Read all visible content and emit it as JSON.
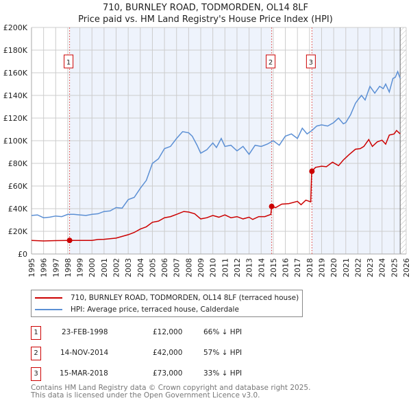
{
  "title": "710, BURNLEY ROAD, TODMORDEN, OL14 8LF",
  "subtitle": "Price paid vs. HM Land Registry's House Price Index (HPI)",
  "legend": {
    "property": "710, BURNLEY ROAD, TODMORDEN, OL14 8LF (terraced house)",
    "hpi": "HPI: Average price, terraced house, Calderdale"
  },
  "sales": [
    {
      "num": "1",
      "date": "23-FEB-1998",
      "price": "£12,000",
      "hpi": "66% ↓ HPI"
    },
    {
      "num": "2",
      "date": "14-NOV-2014",
      "price": "£42,000",
      "hpi": "57% ↓ HPI"
    },
    {
      "num": "3",
      "date": "15-MAR-2018",
      "price": "£73,000",
      "hpi": "33% ↓ HPI"
    }
  ],
  "footer": {
    "line1": "Contains HM Land Registry data © Crown copyright and database right 2025.",
    "line2": "This data is licensed under the Open Government Licence v3.0."
  },
  "chart_data": {
    "type": "line",
    "xlim": [
      1995,
      2026
    ],
    "ylim": [
      0,
      200000
    ],
    "yticks": [
      0,
      20000,
      40000,
      60000,
      80000,
      100000,
      120000,
      140000,
      160000,
      180000,
      200000
    ],
    "ytick_labels": [
      "£0",
      "£20K",
      "£40K",
      "£60K",
      "£80K",
      "£100K",
      "£120K",
      "£140K",
      "£160K",
      "£180K",
      "£200K"
    ],
    "xticks": [
      1995,
      1996,
      1997,
      1998,
      1999,
      2000,
      2001,
      2002,
      2003,
      2004,
      2005,
      2006,
      2007,
      2008,
      2009,
      2010,
      2011,
      2012,
      2013,
      2014,
      2015,
      2016,
      2017,
      2018,
      2019,
      2020,
      2021,
      2022,
      2023,
      2024,
      2025,
      2026
    ],
    "colors": {
      "property": "#cc0000",
      "hpi": "#5b8fd4",
      "shade": "#eef3fc"
    },
    "data_end": 2025.5,
    "sale_points": [
      {
        "num": "1",
        "x": 1998.15,
        "y": 12000
      },
      {
        "num": "2",
        "x": 2014.87,
        "y": 42000
      },
      {
        "num": "3",
        "x": 2018.2,
        "y": 73000
      }
    ],
    "series": [
      {
        "name": "HPI: Average price, terraced house, Calderdale",
        "key": "hpi",
        "points": [
          [
            1995,
            34000
          ],
          [
            1995.5,
            34500
          ],
          [
            1996,
            32000
          ],
          [
            1996.5,
            32500
          ],
          [
            1997,
            33500
          ],
          [
            1997.5,
            33000
          ],
          [
            1998,
            35000
          ],
          [
            1998.5,
            35000
          ],
          [
            1999,
            34500
          ],
          [
            1999.5,
            34000
          ],
          [
            2000,
            35000
          ],
          [
            2000.5,
            35500
          ],
          [
            2001,
            37500
          ],
          [
            2001.5,
            38000
          ],
          [
            2002,
            41000
          ],
          [
            2002.5,
            40500
          ],
          [
            2003,
            48000
          ],
          [
            2003.5,
            50000
          ],
          [
            2004,
            58000
          ],
          [
            2004.5,
            65000
          ],
          [
            2005,
            80000
          ],
          [
            2005.5,
            84000
          ],
          [
            2006,
            93000
          ],
          [
            2006.5,
            95000
          ],
          [
            2007,
            102000
          ],
          [
            2007.5,
            108000
          ],
          [
            2008,
            107000
          ],
          [
            2008.3,
            104000
          ],
          [
            2008.7,
            96000
          ],
          [
            2009,
            89000
          ],
          [
            2009.5,
            92000
          ],
          [
            2010,
            98000
          ],
          [
            2010.3,
            94000
          ],
          [
            2010.7,
            102000
          ],
          [
            2011,
            95000
          ],
          [
            2011.5,
            96000
          ],
          [
            2012,
            91000
          ],
          [
            2012.5,
            95000
          ],
          [
            2013,
            88000
          ],
          [
            2013.5,
            96000
          ],
          [
            2014,
            95000
          ],
          [
            2014.5,
            97000
          ],
          [
            2015,
            100000
          ],
          [
            2015.5,
            96000
          ],
          [
            2016,
            104000
          ],
          [
            2016.5,
            106000
          ],
          [
            2017,
            102000
          ],
          [
            2017.4,
            111000
          ],
          [
            2017.8,
            106000
          ],
          [
            2018.2,
            109000
          ],
          [
            2018.6,
            113000
          ],
          [
            2019,
            114000
          ],
          [
            2019.5,
            113000
          ],
          [
            2020,
            116000
          ],
          [
            2020.4,
            120000
          ],
          [
            2020.8,
            115000
          ],
          [
            2021,
            116000
          ],
          [
            2021.4,
            123000
          ],
          [
            2021.8,
            133000
          ],
          [
            2022,
            136000
          ],
          [
            2022.3,
            140000
          ],
          [
            2022.6,
            136000
          ],
          [
            2023,
            148000
          ],
          [
            2023.4,
            142000
          ],
          [
            2023.8,
            148000
          ],
          [
            2024.1,
            146000
          ],
          [
            2024.3,
            150000
          ],
          [
            2024.6,
            143000
          ],
          [
            2024.9,
            155000
          ],
          [
            2025.1,
            156000
          ],
          [
            2025.3,
            161000
          ],
          [
            2025.5,
            155000
          ]
        ]
      },
      {
        "name": "710, BURNLEY ROAD, TODMORDEN, OL14 8LF (terraced house)",
        "key": "property",
        "points": [
          [
            1995,
            12000
          ],
          [
            1996,
            11500
          ],
          [
            1997,
            11800
          ],
          [
            1998.15,
            12000
          ],
          [
            1999,
            12000
          ],
          [
            2000,
            12000
          ],
          [
            2000.5,
            12800
          ],
          [
            2001,
            13000
          ],
          [
            2002,
            14000
          ],
          [
            2002.5,
            15500
          ],
          [
            2003,
            17000
          ],
          [
            2003.5,
            19000
          ],
          [
            2004,
            22000
          ],
          [
            2004.5,
            24000
          ],
          [
            2005,
            28000
          ],
          [
            2005.5,
            29000
          ],
          [
            2006,
            32000
          ],
          [
            2006.5,
            33000
          ],
          [
            2007,
            35000
          ],
          [
            2007.6,
            37500
          ],
          [
            2008,
            37000
          ],
          [
            2008.5,
            35500
          ],
          [
            2009,
            31000
          ],
          [
            2009.5,
            32000
          ],
          [
            2010,
            34000
          ],
          [
            2010.5,
            32500
          ],
          [
            2011,
            34500
          ],
          [
            2011.5,
            32000
          ],
          [
            2012,
            33000
          ],
          [
            2012.5,
            31000
          ],
          [
            2013,
            32500
          ],
          [
            2013.3,
            30500
          ],
          [
            2013.8,
            33000
          ],
          [
            2014.3,
            33000
          ],
          [
            2014.8,
            35000
          ],
          [
            2014.87,
            42000
          ],
          [
            2015.2,
            41000
          ],
          [
            2015.7,
            44000
          ],
          [
            2016.3,
            44500
          ],
          [
            2017,
            46500
          ],
          [
            2017.3,
            43500
          ],
          [
            2017.7,
            47500
          ],
          [
            2018.1,
            46000
          ],
          [
            2018.18,
            73000
          ],
          [
            2018.5,
            76500
          ],
          [
            2019,
            77500
          ],
          [
            2019.4,
            77000
          ],
          [
            2019.9,
            81000
          ],
          [
            2020.4,
            78000
          ],
          [
            2020.8,
            83000
          ],
          [
            2021.3,
            88000
          ],
          [
            2021.8,
            92500
          ],
          [
            2022.2,
            93000
          ],
          [
            2022.5,
            95000
          ],
          [
            2022.9,
            101000
          ],
          [
            2023.2,
            95000
          ],
          [
            2023.6,
            99000
          ],
          [
            2024,
            100500
          ],
          [
            2024.3,
            97000
          ],
          [
            2024.6,
            105000
          ],
          [
            2025,
            106000
          ],
          [
            2025.2,
            109000
          ],
          [
            2025.5,
            106000
          ]
        ]
      }
    ]
  }
}
